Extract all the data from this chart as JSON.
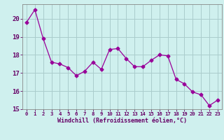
{
  "x": [
    0,
    1,
    2,
    3,
    4,
    5,
    6,
    7,
    8,
    9,
    10,
    11,
    12,
    13,
    14,
    15,
    16,
    17,
    18,
    19,
    20,
    21,
    22,
    23
  ],
  "y": [
    19.8,
    20.5,
    18.9,
    17.6,
    17.5,
    17.3,
    16.85,
    17.1,
    17.6,
    17.2,
    18.3,
    18.35,
    17.8,
    17.35,
    17.35,
    17.7,
    18.0,
    17.95,
    16.65,
    16.4,
    15.95,
    15.8,
    15.2,
    15.5
  ],
  "line_color": "#990099",
  "marker": "D",
  "marker_size": 2.5,
  "bg_color": "#cff0ee",
  "grid_color": "#aacccc",
  "xlabel": "Windchill (Refroidissement éolien,°C)",
  "xlabel_color": "#660066",
  "tick_color": "#660066",
  "ylim": [
    15,
    20.8
  ],
  "xlim": [
    -0.5,
    23.5
  ],
  "yticks": [
    15,
    16,
    17,
    18,
    19,
    20
  ],
  "xticks": [
    0,
    1,
    2,
    3,
    4,
    5,
    6,
    7,
    8,
    9,
    10,
    11,
    12,
    13,
    14,
    15,
    16,
    17,
    18,
    19,
    20,
    21,
    22,
    23
  ],
  "spine_color": "#888888",
  "linewidth": 0.9,
  "xlabel_fontsize": 6.0,
  "xtick_fontsize": 5.2,
  "ytick_fontsize": 6.5
}
